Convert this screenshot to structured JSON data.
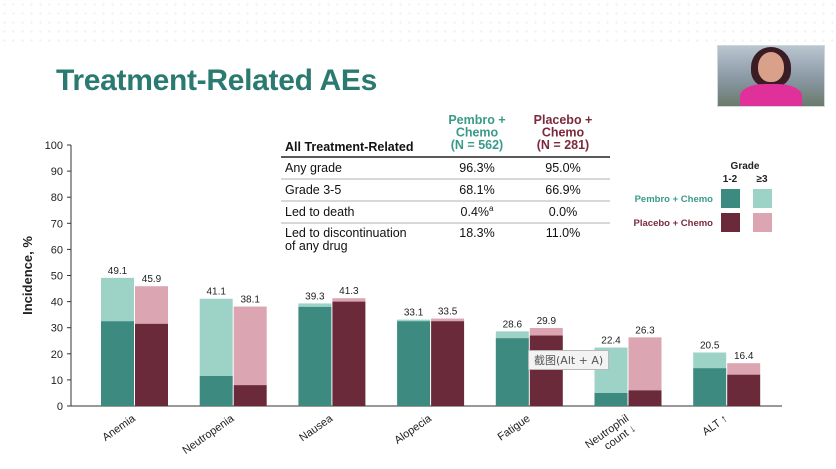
{
  "slide": {
    "title": "Treatment-Related AEs",
    "tooltip": "截图(Alt + A)"
  },
  "colors": {
    "pembro_12": "#3c8a80",
    "pembro_3": "#9dd3c7",
    "placebo_12": "#6b2a3a",
    "placebo_3": "#dba6b2",
    "title": "#2b7a72",
    "pembro_text": "#3a9a8a",
    "placebo_text": "#7a2a3c"
  },
  "legend": {
    "grade_header": "Grade",
    "col1": "1-2",
    "col2": "≥3",
    "pembro": "Pembro + Chemo",
    "placebo": "Placebo + Chemo"
  },
  "table": {
    "header": "All Treatment-Related",
    "col_pembro": [
      "Pembro +",
      "Chemo",
      "(N = 562)"
    ],
    "col_placebo": [
      "Placebo +",
      "Chemo",
      "(N = 281)"
    ],
    "rows": [
      {
        "label": [
          "Any grade"
        ],
        "pembro": "96.3%",
        "placebo": "95.0%"
      },
      {
        "label": [
          "Grade 3-5"
        ],
        "pembro": "68.1%",
        "placebo": "66.9%"
      },
      {
        "label": [
          "Led to death"
        ],
        "pembro": "0.4%",
        "pembro_sup": "a",
        "placebo": "0.0%"
      },
      {
        "label": [
          "Led to discontinuation",
          "of any drug"
        ],
        "pembro": "18.3%",
        "placebo": "11.0%"
      }
    ]
  },
  "chart_data": {
    "type": "bar",
    "ylabel": "Incidence, %",
    "ylim": [
      0,
      100
    ],
    "yticks": [
      0,
      10,
      20,
      30,
      40,
      50,
      60,
      70,
      80,
      90,
      100
    ],
    "categories": [
      "Anemia",
      "Neutropenia",
      "Nausea",
      "Alopecia",
      "Fatigue",
      "Neutrophil count ↓",
      "ALT ↑"
    ],
    "category_lines": [
      [
        "Anemia"
      ],
      [
        "Neutropenia"
      ],
      [
        "Nausea"
      ],
      [
        "Alopecia"
      ],
      [
        "Fatigue"
      ],
      [
        "Neutrophil",
        "count ↓"
      ],
      [
        "ALT ↑"
      ]
    ],
    "series": [
      {
        "name": "Pembro + Chemo",
        "total": [
          49.1,
          41.1,
          39.3,
          33.1,
          28.6,
          22.4,
          20.5
        ],
        "grade_1_2": [
          32.5,
          11.5,
          38.0,
          32.5,
          26.0,
          5.0,
          14.5
        ],
        "grade_3_plus": [
          16.6,
          29.6,
          1.3,
          0.6,
          2.6,
          17.4,
          6.0
        ]
      },
      {
        "name": "Placebo + Chemo",
        "total": [
          45.9,
          38.1,
          41.3,
          33.5,
          29.9,
          26.3,
          16.4
        ],
        "grade_1_2": [
          31.5,
          8.0,
          40.0,
          32.5,
          27.0,
          6.0,
          12.0
        ],
        "grade_3_plus": [
          14.4,
          30.1,
          1.3,
          1.0,
          2.9,
          20.3,
          4.4
        ]
      }
    ],
    "total_labels": [
      [
        "49.1",
        "45.9"
      ],
      [
        "41.1",
        "38.1"
      ],
      [
        "39.3",
        "41.3"
      ],
      [
        "33.1",
        "33.5"
      ],
      [
        "28.6",
        "29.9"
      ],
      [
        "22.4",
        "26.3"
      ],
      [
        "20.5",
        "16.4"
      ]
    ],
    "legend_position": "top-right",
    "grid": false
  }
}
